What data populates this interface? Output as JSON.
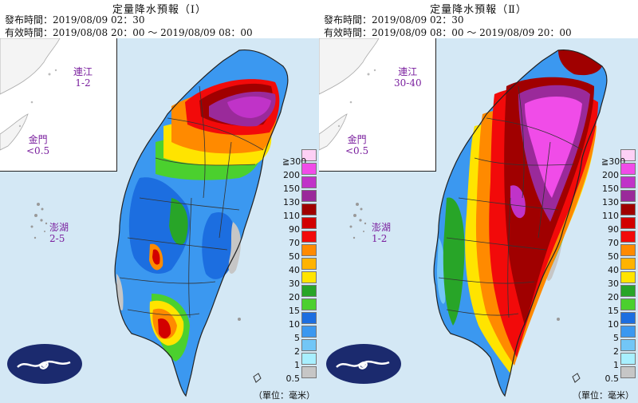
{
  "panels": [
    {
      "title": "定量降水預報（Ⅰ）",
      "issued": "發布時間：2019/08/09 02：30",
      "valid": "有效時間：2019/08/08 20：00 ～ 2019/08/09 08：00",
      "matsu_label": "連江",
      "matsu_value": "1-2",
      "kinmen_label": "金門",
      "kinmen_value": "<0.5",
      "penghu_label": "澎湖",
      "penghu_value": "2-5",
      "unit_label": "（單位：毫米）"
    },
    {
      "title": "定量降水預報（Ⅱ）",
      "issued": "發布時間：2019/08/09 02：30",
      "valid": "有效時間：2019/08/09 08：00 ～ 2019/08/09 20：00",
      "matsu_label": "連江",
      "matsu_value": "30-40",
      "kinmen_label": "金門",
      "kinmen_value": "<0.5",
      "penghu_label": "澎湖",
      "penghu_value": "1-2",
      "unit_label": "（單位：毫米）"
    }
  ],
  "legend": {
    "levels": [
      {
        "label": "≧300",
        "color": "#fdd0f5"
      },
      {
        "label": "200",
        "color": "#f04ce8"
      },
      {
        "label": "150",
        "color": "#c033c8"
      },
      {
        "label": "130",
        "color": "#9a2a9a"
      },
      {
        "label": "110",
        "color": "#a00000"
      },
      {
        "label": "90",
        "color": "#d20000"
      },
      {
        "label": "70",
        "color": "#f20a0a"
      },
      {
        "label": "50",
        "color": "#ff8a00"
      },
      {
        "label": "40",
        "color": "#ffb300"
      },
      {
        "label": "30",
        "color": "#ffe400"
      },
      {
        "label": "20",
        "color": "#28a528"
      },
      {
        "label": "15",
        "color": "#4bd02e"
      },
      {
        "label": "10",
        "color": "#1c6ee0"
      },
      {
        "label": "5",
        "color": "#3b98f0"
      },
      {
        "label": "2",
        "color": "#72c6f6"
      },
      {
        "label": "1",
        "color": "#a8efff"
      },
      {
        "label": "0.5",
        "color": "#c6c6c6"
      }
    ]
  },
  "logo_name": "central-weather-bureau-logo"
}
